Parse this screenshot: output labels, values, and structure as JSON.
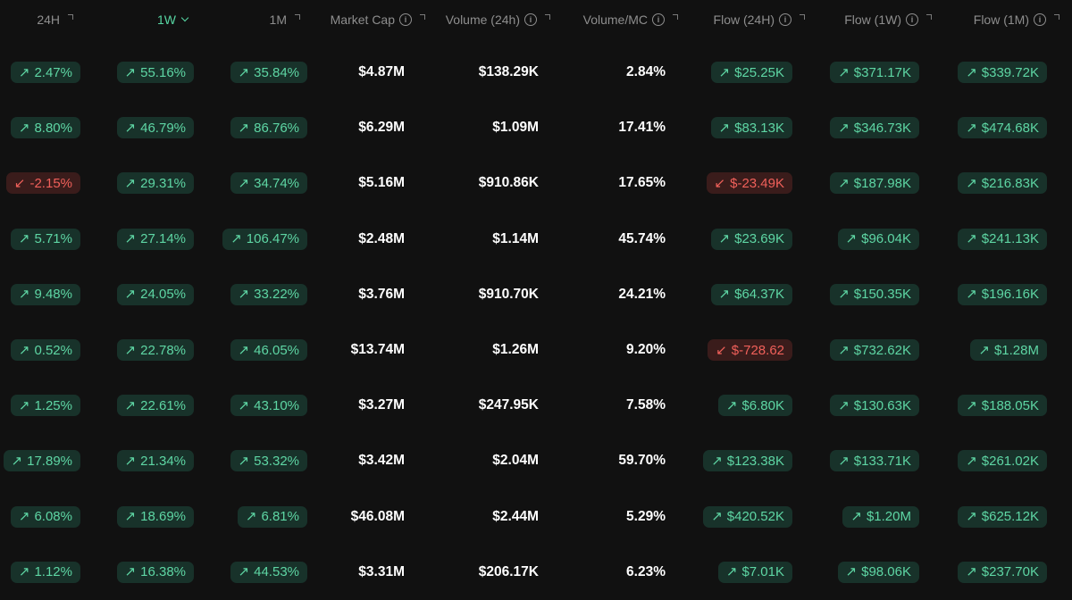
{
  "headers": {
    "h24": "24H",
    "h1w": "1W",
    "h1m": "1M",
    "market_cap": "Market Cap",
    "volume": "Volume (24h)",
    "volume_mc": "Volume/MC",
    "flow24": "Flow (24H)",
    "flow1w": "Flow (1W)",
    "flow1m": "Flow (1M)",
    "info_glyph": "i"
  },
  "colors": {
    "background": "#111111",
    "positive": "#5ed6a4",
    "positive_bg": "#18322a",
    "negative": "#f0605a",
    "negative_bg": "#3a1c1b",
    "active_header": "#57d6a3"
  },
  "icons": {
    "up": "arrow-up-right-icon",
    "down": "arrow-down-left-icon",
    "up_glyph": "↗",
    "down_glyph": "↙"
  },
  "rows": [
    {
      "c24h": "2.47%",
      "c24h_dir": "up",
      "c1w": "55.16%",
      "c1w_dir": "up",
      "c1m": "35.84%",
      "c1m_dir": "up",
      "mcap": "$4.87M",
      "vol": "$138.29K",
      "vmc": "2.84%",
      "f24": "$25.25K",
      "f24_dir": "up",
      "f1w": "$371.17K",
      "f1w_dir": "up",
      "f1m": "$339.72K",
      "f1m_dir": "up"
    },
    {
      "c24h": "8.80%",
      "c24h_dir": "up",
      "c1w": "46.79%",
      "c1w_dir": "up",
      "c1m": "86.76%",
      "c1m_dir": "up",
      "mcap": "$6.29M",
      "vol": "$1.09M",
      "vmc": "17.41%",
      "f24": "$83.13K",
      "f24_dir": "up",
      "f1w": "$346.73K",
      "f1w_dir": "up",
      "f1m": "$474.68K",
      "f1m_dir": "up"
    },
    {
      "c24h": "-2.15%",
      "c24h_dir": "down",
      "c1w": "29.31%",
      "c1w_dir": "up",
      "c1m": "34.74%",
      "c1m_dir": "up",
      "mcap": "$5.16M",
      "vol": "$910.86K",
      "vmc": "17.65%",
      "f24": "$-23.49K",
      "f24_dir": "down",
      "f1w": "$187.98K",
      "f1w_dir": "up",
      "f1m": "$216.83K",
      "f1m_dir": "up"
    },
    {
      "c24h": "5.71%",
      "c24h_dir": "up",
      "c1w": "27.14%",
      "c1w_dir": "up",
      "c1m": "106.47%",
      "c1m_dir": "up",
      "mcap": "$2.48M",
      "vol": "$1.14M",
      "vmc": "45.74%",
      "f24": "$23.69K",
      "f24_dir": "up",
      "f1w": "$96.04K",
      "f1w_dir": "up",
      "f1m": "$241.13K",
      "f1m_dir": "up"
    },
    {
      "c24h": "9.48%",
      "c24h_dir": "up",
      "c1w": "24.05%",
      "c1w_dir": "up",
      "c1m": "33.22%",
      "c1m_dir": "up",
      "mcap": "$3.76M",
      "vol": "$910.70K",
      "vmc": "24.21%",
      "f24": "$64.37K",
      "f24_dir": "up",
      "f1w": "$150.35K",
      "f1w_dir": "up",
      "f1m": "$196.16K",
      "f1m_dir": "up"
    },
    {
      "c24h": "0.52%",
      "c24h_dir": "up",
      "c1w": "22.78%",
      "c1w_dir": "up",
      "c1m": "46.05%",
      "c1m_dir": "up",
      "mcap": "$13.74M",
      "vol": "$1.26M",
      "vmc": "9.20%",
      "f24": "$-728.62",
      "f24_dir": "down",
      "f1w": "$732.62K",
      "f1w_dir": "up",
      "f1m": "$1.28M",
      "f1m_dir": "up"
    },
    {
      "c24h": "1.25%",
      "c24h_dir": "up",
      "c1w": "22.61%",
      "c1w_dir": "up",
      "c1m": "43.10%",
      "c1m_dir": "up",
      "mcap": "$3.27M",
      "vol": "$247.95K",
      "vmc": "7.58%",
      "f24": "$6.80K",
      "f24_dir": "up",
      "f1w": "$130.63K",
      "f1w_dir": "up",
      "f1m": "$188.05K",
      "f1m_dir": "up"
    },
    {
      "c24h": "17.89%",
      "c24h_dir": "up",
      "c1w": "21.34%",
      "c1w_dir": "up",
      "c1m": "53.32%",
      "c1m_dir": "up",
      "mcap": "$3.42M",
      "vol": "$2.04M",
      "vmc": "59.70%",
      "f24": "$123.38K",
      "f24_dir": "up",
      "f1w": "$133.71K",
      "f1w_dir": "up",
      "f1m": "$261.02K",
      "f1m_dir": "up"
    },
    {
      "c24h": "6.08%",
      "c24h_dir": "up",
      "c1w": "18.69%",
      "c1w_dir": "up",
      "c1m": "6.81%",
      "c1m_dir": "up",
      "mcap": "$46.08M",
      "vol": "$2.44M",
      "vmc": "5.29%",
      "f24": "$420.52K",
      "f24_dir": "up",
      "f1w": "$1.20M",
      "f1w_dir": "up",
      "f1m": "$625.12K",
      "f1m_dir": "up"
    },
    {
      "c24h": "1.12%",
      "c24h_dir": "up",
      "c1w": "16.38%",
      "c1w_dir": "up",
      "c1m": "44.53%",
      "c1m_dir": "up",
      "mcap": "$3.31M",
      "vol": "$206.17K",
      "vmc": "6.23%",
      "f24": "$7.01K",
      "f24_dir": "up",
      "f1w": "$98.06K",
      "f1w_dir": "up",
      "f1m": "$237.70K",
      "f1m_dir": "up"
    }
  ]
}
